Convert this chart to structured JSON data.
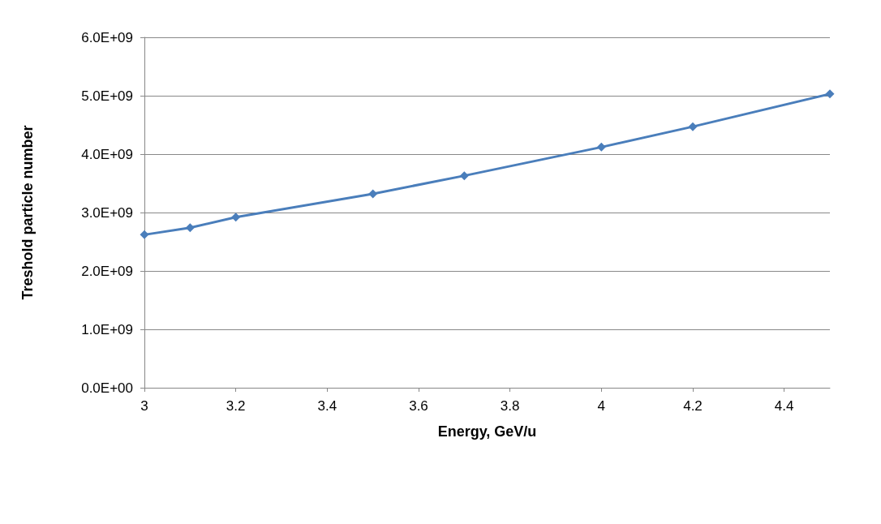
{
  "chart_data": {
    "type": "line",
    "xlabel": "Energy, GeV/u",
    "ylabel": "Treshold particle number",
    "x": [
      3,
      3.1,
      3.2,
      3.5,
      3.7,
      4,
      4.2,
      4.5
    ],
    "series": [
      {
        "color": "#4a7ebb",
        "values": [
          2620000000.0,
          2740000000.0,
          2920000000.0,
          3320000000.0,
          3630000000.0,
          4120000000.0,
          4470000000.0,
          5030000000.0
        ]
      }
    ],
    "xlim": [
      3,
      4.5
    ],
    "xticks": [
      3,
      3.2,
      3.4,
      3.6,
      3.8,
      4,
      4.2,
      4.4
    ],
    "ylim": [
      0,
      6000000000.0
    ],
    "yticks": [
      {
        "value": 0,
        "label": "0.0E+00"
      },
      {
        "value": 1000000000.0,
        "label": "1.0E+09"
      },
      {
        "value": 2000000000.0,
        "label": "2.0E+09"
      },
      {
        "value": 3000000000.0,
        "label": "3.0E+09"
      },
      {
        "value": 4000000000.0,
        "label": "4.0E+09"
      },
      {
        "value": 5000000000.0,
        "label": "5.0E+09"
      },
      {
        "value": 6000000000.0,
        "label": "6.0E+09"
      }
    ],
    "grid": "y",
    "marker": "diamond",
    "line_style": "solid"
  }
}
